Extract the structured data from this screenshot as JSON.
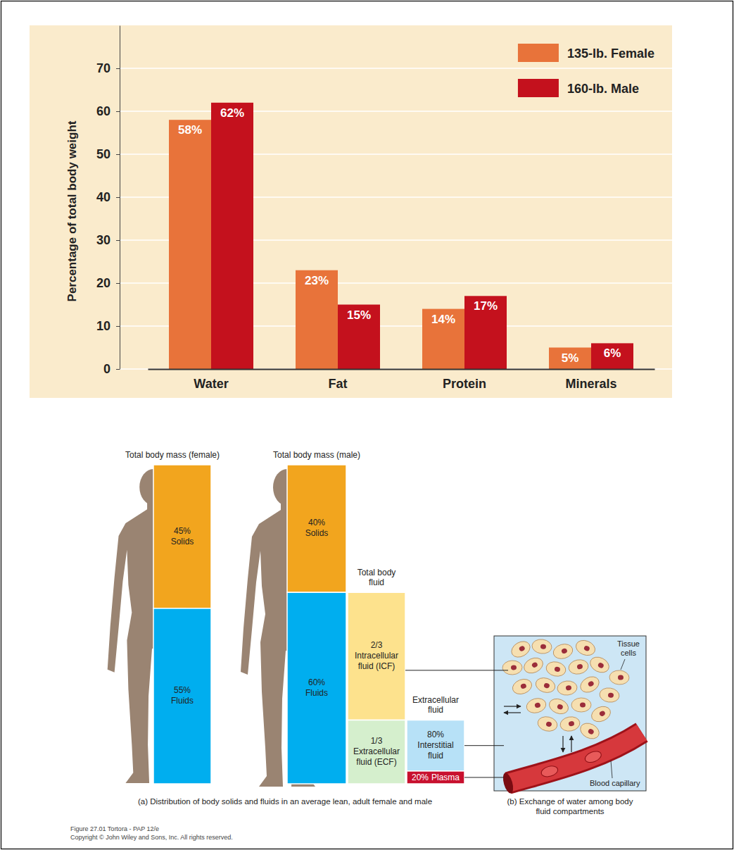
{
  "chart_data": {
    "type": "bar",
    "categories": [
      "Water",
      "Fat",
      "Protein",
      "Minerals"
    ],
    "series": [
      {
        "name": "135-lb. Female",
        "color": "#e8733a",
        "values": [
          58,
          23,
          14,
          5
        ],
        "value_labels": [
          "58%",
          "23%",
          "14%",
          "5%"
        ]
      },
      {
        "name": "160-lb. Male",
        "color": "#c4111d",
        "values": [
          62,
          15,
          17,
          6
        ],
        "value_labels": [
          "62%",
          "15%",
          "17%",
          "6%"
        ]
      }
    ],
    "ylabel": "Percentage of total body weight",
    "ylim": [
      0,
      80
    ],
    "yticks": [
      0,
      10,
      20,
      30,
      40,
      50,
      60,
      70
    ],
    "grid": true,
    "legend": "upper right",
    "data_labels": true
  },
  "diagram": {
    "female": {
      "title": "Total body mass (female)",
      "segments": [
        {
          "value": 45,
          "label": "45%",
          "name": "Solids"
        },
        {
          "value": 55,
          "label": "55%",
          "name": "Fluids"
        }
      ]
    },
    "male": {
      "title": "Total body mass (male)",
      "segments": [
        {
          "value": 40,
          "label": "40%",
          "name": "Solids"
        },
        {
          "value": 60,
          "label": "60%",
          "name": "Fluids"
        }
      ]
    },
    "total_body_fluid": {
      "title": "Total body fluid",
      "segments": [
        {
          "value": 0.667,
          "label": "2/3",
          "name": "Intracellular fluid (ICF)"
        },
        {
          "value": 0.333,
          "label": "1/3",
          "name": "Extracellular fluid (ECF)"
        }
      ]
    },
    "extracellular_fluid": {
      "title": "Extracellular fluid",
      "segments": [
        {
          "value": 80,
          "label": "80%",
          "name": "Interstitial fluid"
        },
        {
          "value": 20,
          "label": "20%",
          "name": "Plasma"
        }
      ]
    },
    "exchange": {
      "tissue_cells": "Tissue cells",
      "blood_capillary": "Blood capillary"
    },
    "captions": {
      "a": "(a) Distribution of body solids and fluids in an average lean, adult female and male",
      "b": "(b) Exchange of water among body fluid compartments"
    },
    "footer": {
      "figure": "Figure 27.01 Tortora - PAP 12/e",
      "copyright": "Copyright © John Wiley and Sons, Inc. All rights reserved."
    }
  }
}
